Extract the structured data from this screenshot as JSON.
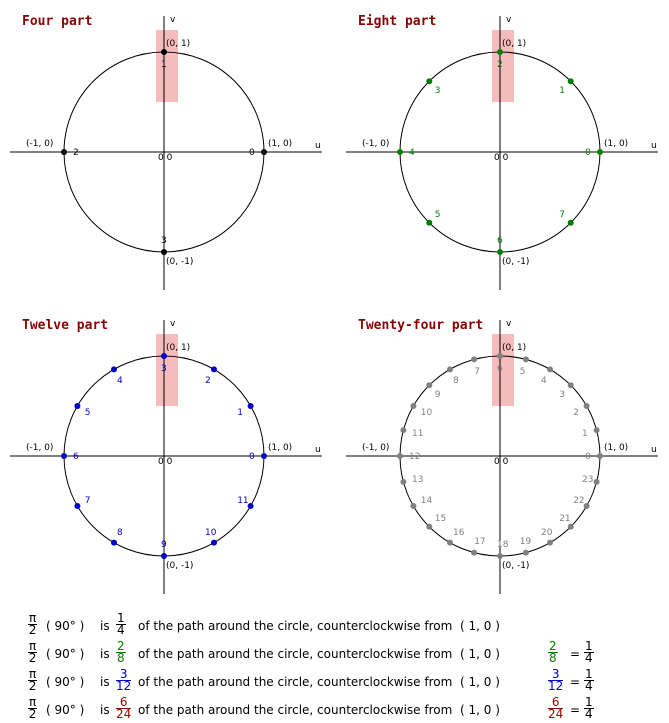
{
  "panels": [
    {
      "title": "Four part",
      "n": 4
    },
    {
      "title": "Eight part",
      "n": 8
    },
    {
      "title": "Twelve part",
      "n": 12
    },
    {
      "title": "Twenty-four part",
      "n": 24
    }
  ],
  "axis": {
    "u": "u",
    "v": "v",
    "origin": "0 0"
  },
  "special": {
    "top": "(0, 1)",
    "left": "(-1, 0)",
    "right": "(1, 0)",
    "bottom": "(0, -1)"
  },
  "footer": {
    "lines": [
      {
        "lhs_num": "π",
        "lhs_den": "2",
        "deg": "( 90° )",
        "is": "is",
        "f_num": "1",
        "f_den": "4",
        "text": "of the path around the circle, counterclockwise from",
        "pt": "( 1, 0 )",
        "r_num": "",
        "r_den": "",
        "e_num": "",
        "e_den": "",
        "color": "#000000"
      },
      {
        "lhs_num": "π",
        "lhs_den": "2",
        "deg": "( 90° )",
        "is": "is",
        "f_num": "2",
        "f_den": "8",
        "text": "of the path around the circle, counterclockwise from",
        "pt": "( 1, 0 )",
        "r_num": "2",
        "r_den": "8",
        "e_num": "1",
        "e_den": "4",
        "color": "#008000"
      },
      {
        "lhs_num": "π",
        "lhs_den": "2",
        "deg": "( 90° )",
        "is": "is",
        "f_num": "3",
        "f_den": "12",
        "text": "of the path around the circle, counterclockwise from",
        "pt": "( 1, 0 )",
        "r_num": "3",
        "r_den": "12",
        "e_num": "1",
        "e_den": "4",
        "color": "#0000cc"
      },
      {
        "lhs_num": "π",
        "lhs_den": "2",
        "deg": "( 90° )",
        "is": "is",
        "f_num": "6",
        "f_den": "24",
        "text": "of the path around the circle, counterclockwise from",
        "pt": "( 1, 0 )",
        "r_num": "6",
        "r_den": "24",
        "e_num": "1",
        "e_den": "4",
        "color": "#990000"
      }
    ],
    "eq": "="
  },
  "colors": {
    "title": "#8b0000",
    "four": "#000000",
    "eight": "#008000",
    "twelve": "#0000cc",
    "twentyfour": "#808080",
    "highlight": "#f4bcbc"
  }
}
